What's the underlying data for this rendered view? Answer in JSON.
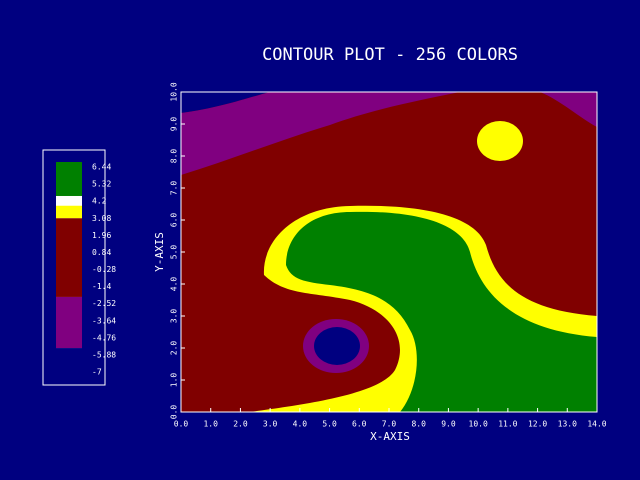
{
  "chart_data": {
    "type": "contour",
    "title": "CONTOUR PLOT - 256 COLORS",
    "x_label": "X-AXIS",
    "y_label": "Y-AXIS",
    "xlim": [
      0,
      14
    ],
    "ylim": [
      0,
      10
    ],
    "xticks": [
      {
        "value": 0,
        "label": "0.0"
      },
      {
        "value": 1,
        "label": "1.0"
      },
      {
        "value": 2,
        "label": "2.0"
      },
      {
        "value": 3,
        "label": "3.0"
      },
      {
        "value": 4,
        "label": "4.0"
      },
      {
        "value": 5,
        "label": "5.0"
      },
      {
        "value": 6,
        "label": "6.0"
      },
      {
        "value": 7,
        "label": "7.0"
      },
      {
        "value": 8,
        "label": "8.0"
      },
      {
        "value": 9,
        "label": "9.0"
      },
      {
        "value": 10,
        "label": "10.0"
      },
      {
        "value": 11,
        "label": "11.0"
      },
      {
        "value": 12,
        "label": "12.0"
      },
      {
        "value": 13,
        "label": "13.0"
      },
      {
        "value": 14,
        "label": "14.0"
      }
    ],
    "yticks": [
      {
        "value": 0,
        "label": "0.0"
      },
      {
        "value": 1,
        "label": "1.0"
      },
      {
        "value": 2,
        "label": "2.0"
      },
      {
        "value": 3,
        "label": "3.0"
      },
      {
        "value": 4,
        "label": "4.0"
      },
      {
        "value": 5,
        "label": "5.0"
      },
      {
        "value": 6,
        "label": "6.0"
      },
      {
        "value": 7,
        "label": "7.0"
      },
      {
        "value": 8,
        "label": "8.0"
      },
      {
        "value": 9,
        "label": "9.0"
      },
      {
        "value": 10,
        "label": "10.0"
      }
    ],
    "levels": [
      6.44,
      5.32,
      4.2,
      3.08,
      1.96,
      0.84,
      -0.28,
      -1.4,
      -2.52,
      -3.64,
      -4.76,
      -5.88,
      -7
    ],
    "color_bands": [
      {
        "color": "#008000",
        "from": 4.54,
        "to": 6.44
      },
      {
        "color": "#ffff00",
        "from": 3.08,
        "to": 3.9
      },
      {
        "color": "#800000",
        "from": -2.08,
        "to": 3.08
      },
      {
        "color": "#800080",
        "from": -5.43,
        "to": -2.08
      },
      {
        "color": "#000080",
        "from": -7,
        "to": -5.43
      }
    ]
  }
}
